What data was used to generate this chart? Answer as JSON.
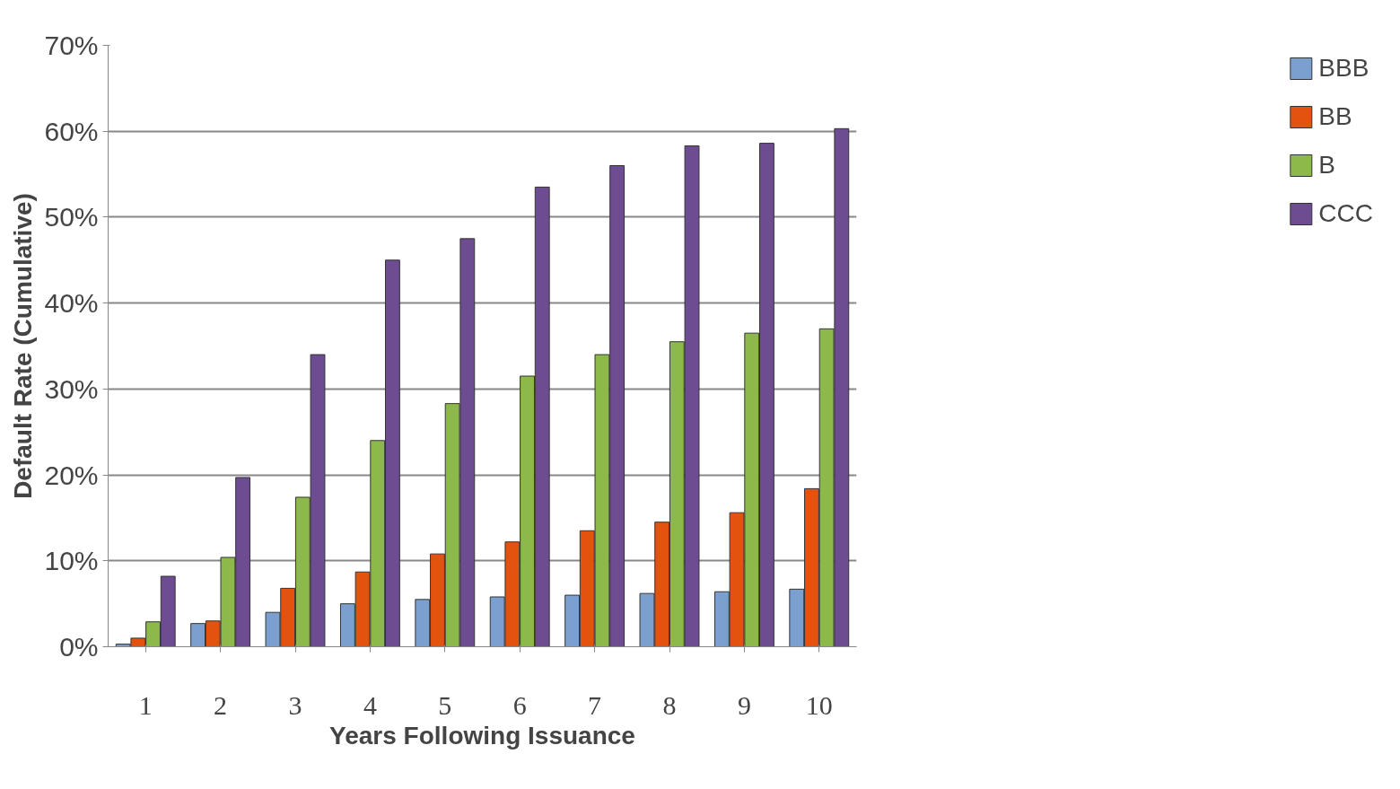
{
  "chart_data": {
    "type": "bar",
    "xlabel": "Years Following Issuance",
    "ylabel": "Default Rate (Cumulative)",
    "categories": [
      "1",
      "2",
      "3",
      "4",
      "5",
      "6",
      "7",
      "8",
      "9",
      "10"
    ],
    "series": [
      {
        "name": "BBB",
        "color": "#7ba0d0",
        "values": [
          0.3,
          2.7,
          4,
          5,
          5.5,
          5.8,
          6,
          6.2,
          6.4,
          6.7
        ]
      },
      {
        "name": "BB",
        "color": "#e3530f",
        "values": [
          1,
          3,
          6.8,
          8.7,
          10.8,
          12.2,
          13.5,
          14.5,
          15.6,
          18.4
        ]
      },
      {
        "name": "B",
        "color": "#8db84a",
        "values": [
          2.9,
          10.4,
          17.4,
          24,
          28.3,
          31.5,
          34,
          35.5,
          36.5,
          37
        ]
      },
      {
        "name": "CCC",
        "color": "#6e4c91",
        "values": [
          8.2,
          19.7,
          34,
          45,
          47.5,
          53.5,
          56,
          58.3,
          58.6,
          60.3
        ]
      }
    ],
    "ylim": [
      0,
      70
    ],
    "yticks": [
      {
        "value": 0,
        "label": "0%"
      },
      {
        "value": 10,
        "label": "10%"
      },
      {
        "value": 20,
        "label": "20%"
      },
      {
        "value": 30,
        "label": "30%"
      },
      {
        "value": 40,
        "label": "40%"
      },
      {
        "value": 50,
        "label": "50%"
      },
      {
        "value": 60,
        "label": "60%"
      },
      {
        "value": 70,
        "label": "70%"
      }
    ],
    "grid": "y",
    "legend": "right"
  }
}
